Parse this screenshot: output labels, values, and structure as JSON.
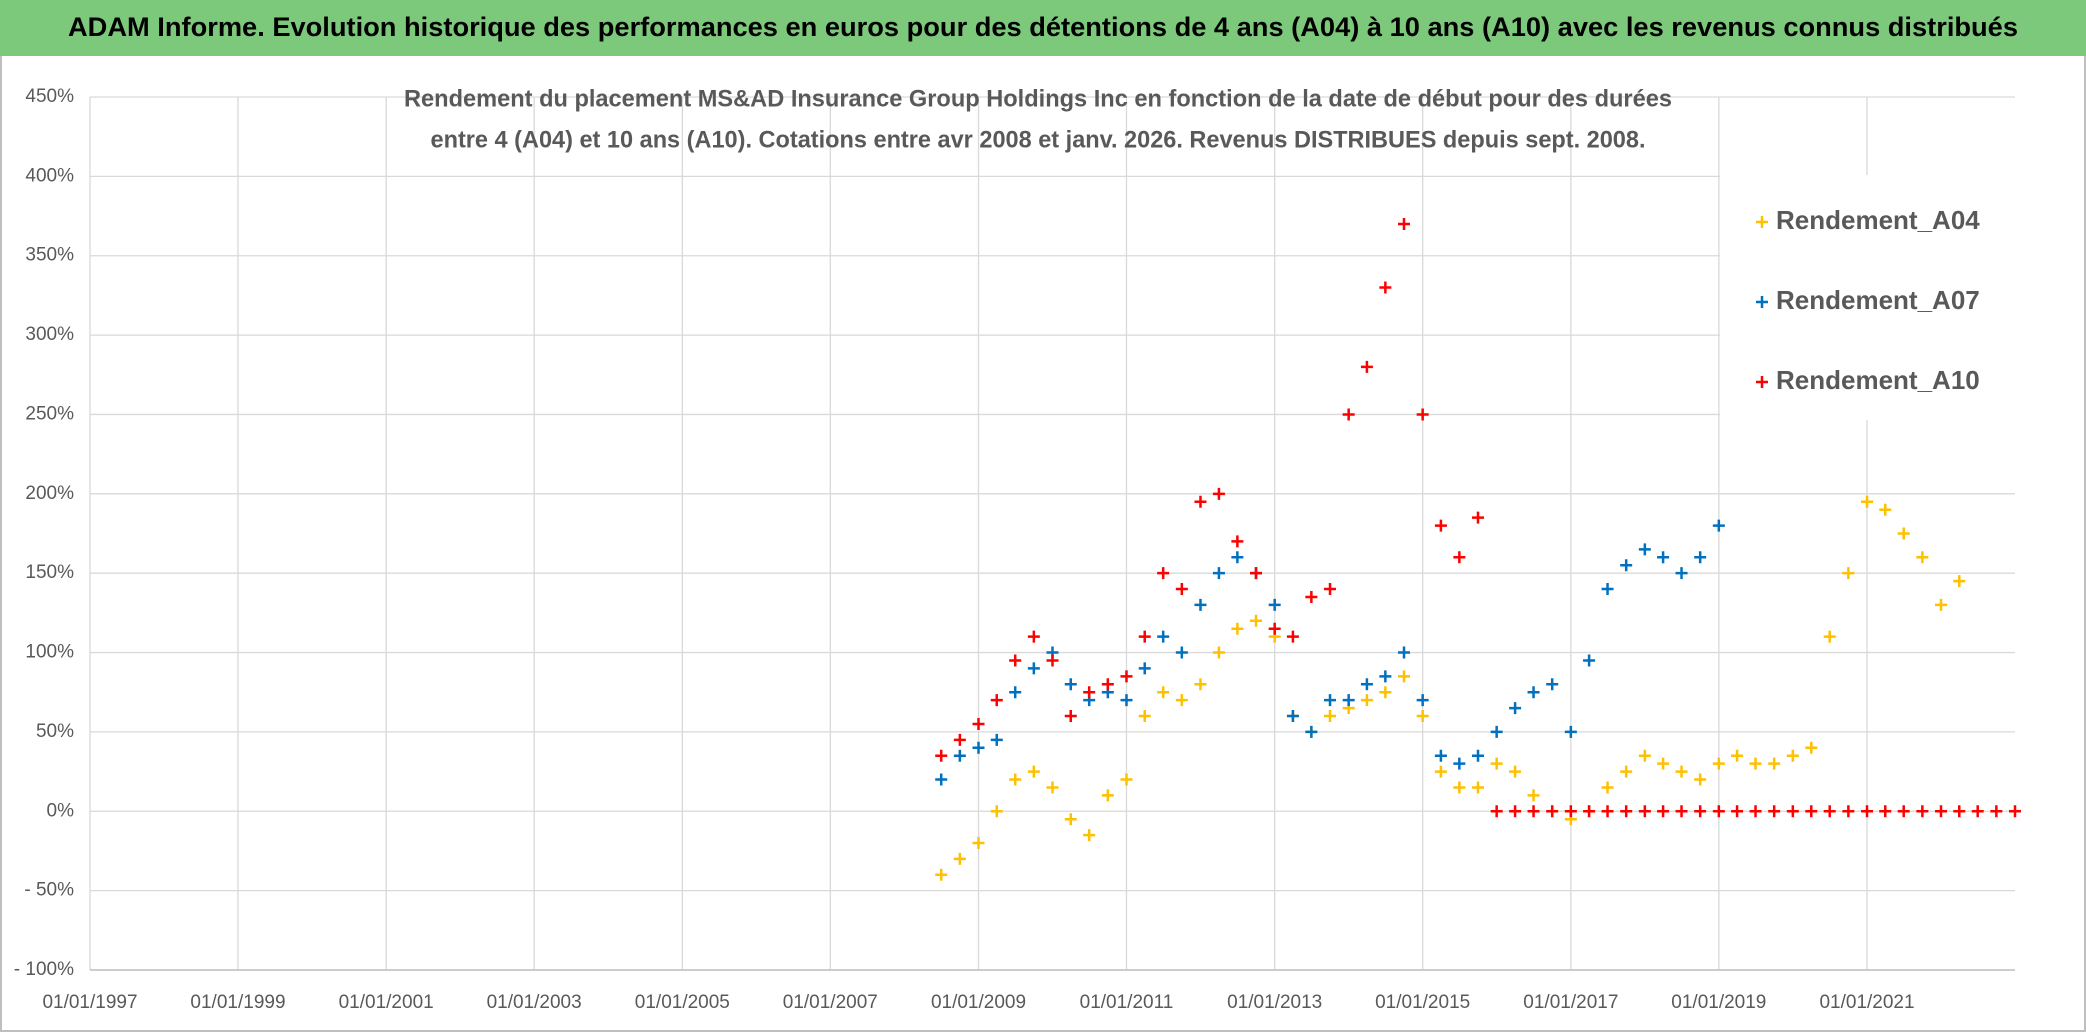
{
  "header": {
    "title": "ADAM Informe. Evolution historique des performances en euros pour des détentions de 4 ans (A04) à 10 ans (A10) avec les revenus connus distribués"
  },
  "chart_data": {
    "type": "scatter",
    "title": [
      "Rendement du placement MS&AD Insurance Group Holdings Inc en fonction de la date de début pour des durées",
      "entre 4 (A04) et 10 ans (A10). Cotations entre avr 2008 et janv. 2026. Revenus DISTRIBUES depuis sept. 2008."
    ],
    "xlim": [
      "1997-01-01",
      "2023-01-01"
    ],
    "xticks": [
      {
        "value": "1997-01-01",
        "label": "01/01/1997"
      },
      {
        "value": "1999-01-01",
        "label": "01/01/1999"
      },
      {
        "value": "2001-01-01",
        "label": "01/01/2001"
      },
      {
        "value": "2003-01-01",
        "label": "01/01/2003"
      },
      {
        "value": "2005-01-01",
        "label": "01/01/2005"
      },
      {
        "value": "2007-01-01",
        "label": "01/01/2007"
      },
      {
        "value": "2009-01-01",
        "label": "01/01/2009"
      },
      {
        "value": "2011-01-01",
        "label": "01/01/2011"
      },
      {
        "value": "2013-01-01",
        "label": "01/01/2013"
      },
      {
        "value": "2015-01-01",
        "label": "01/01/2015"
      },
      {
        "value": "2017-01-01",
        "label": "01/01/2017"
      },
      {
        "value": "2019-01-01",
        "label": "01/01/2019"
      },
      {
        "value": "2021-01-01",
        "label": "01/01/2021"
      }
    ],
    "ylim": [
      -100,
      450
    ],
    "yticks": [
      {
        "value": -100,
        "label": "- 100%"
      },
      {
        "value": -50,
        "label": "- 50%"
      },
      {
        "value": 0,
        "label": "0%"
      },
      {
        "value": 50,
        "label": "50%"
      },
      {
        "value": 100,
        "label": "100%"
      },
      {
        "value": 150,
        "label": "150%"
      },
      {
        "value": 200,
        "label": "200%"
      },
      {
        "value": 250,
        "label": "250%"
      },
      {
        "value": 300,
        "label": "300%"
      },
      {
        "value": 350,
        "label": "350%"
      },
      {
        "value": 400,
        "label": "400%"
      },
      {
        "value": 450,
        "label": "450%"
      }
    ],
    "grid": true,
    "legend": "upper right",
    "series": [
      {
        "name": "Rendement_A04",
        "color": "#ffc000",
        "x": [
          "2008-07-01",
          "2008-10-01",
          "2009-01-01",
          "2009-04-01",
          "2009-07-01",
          "2009-10-01",
          "2010-01-01",
          "2010-04-01",
          "2010-07-01",
          "2010-10-01",
          "2011-01-01",
          "2011-04-01",
          "2011-07-01",
          "2011-10-01",
          "2012-01-01",
          "2012-04-01",
          "2012-07-01",
          "2012-10-01",
          "2013-01-01",
          "2013-04-01",
          "2013-07-01",
          "2013-10-01",
          "2014-01-01",
          "2014-04-01",
          "2014-07-01",
          "2014-10-01",
          "2015-01-01",
          "2015-04-01",
          "2015-07-01",
          "2015-10-01",
          "2016-01-01",
          "2016-04-01",
          "2016-07-01",
          "2016-10-01",
          "2017-01-01",
          "2017-04-01",
          "2017-07-01",
          "2017-10-01",
          "2018-01-01",
          "2018-04-01",
          "2018-07-01",
          "2018-10-01",
          "2019-01-01",
          "2019-04-01",
          "2019-07-01",
          "2019-10-01",
          "2020-01-01",
          "2020-04-01",
          "2020-07-01",
          "2020-10-01",
          "2021-01-01",
          "2021-04-01",
          "2021-07-01",
          "2021-10-01",
          "2022-01-01",
          "2022-04-01"
        ],
        "values": [
          -40,
          -30,
          -20,
          0,
          20,
          25,
          15,
          -5,
          -15,
          10,
          20,
          60,
          75,
          70,
          80,
          100,
          115,
          120,
          110,
          60,
          50,
          60,
          65,
          70,
          75,
          85,
          60,
          25,
          15,
          15,
          30,
          25,
          10,
          0,
          -5,
          0,
          15,
          25,
          35,
          30,
          25,
          20,
          30,
          35,
          30,
          30,
          35,
          40,
          110,
          150,
          195,
          190,
          175,
          160,
          130,
          145
        ]
      },
      {
        "name": "Rendement_A07",
        "color": "#0070c0",
        "x": [
          "2008-07-01",
          "2008-10-01",
          "2009-01-01",
          "2009-04-01",
          "2009-07-01",
          "2009-10-01",
          "2010-01-01",
          "2010-04-01",
          "2010-07-01",
          "2010-10-01",
          "2011-01-01",
          "2011-04-01",
          "2011-07-01",
          "2011-10-01",
          "2012-01-01",
          "2012-04-01",
          "2012-07-01",
          "2012-10-01",
          "2013-01-01",
          "2013-04-01",
          "2013-07-01",
          "2013-10-01",
          "2014-01-01",
          "2014-04-01",
          "2014-07-01",
          "2014-10-01",
          "2015-01-01",
          "2015-04-01",
          "2015-07-01",
          "2015-10-01",
          "2016-01-01",
          "2016-04-01",
          "2016-07-01",
          "2016-10-01",
          "2017-01-01",
          "2017-04-01",
          "2017-07-01",
          "2017-10-01",
          "2018-01-01",
          "2018-04-01",
          "2018-07-01",
          "2018-10-01",
          "2019-01-01"
        ],
        "values": [
          20,
          35,
          40,
          45,
          75,
          90,
          100,
          80,
          70,
          75,
          70,
          90,
          110,
          100,
          130,
          150,
          160,
          150,
          130,
          60,
          50,
          70,
          70,
          80,
          85,
          100,
          70,
          35,
          30,
          35,
          50,
          65,
          75,
          80,
          50,
          95,
          140,
          155,
          165,
          160,
          150,
          160,
          180
        ]
      },
      {
        "name": "Rendement_A10",
        "color": "#ff0000",
        "x": [
          "2008-07-01",
          "2008-10-01",
          "2009-01-01",
          "2009-04-01",
          "2009-07-01",
          "2009-10-01",
          "2010-01-01",
          "2010-04-01",
          "2010-07-01",
          "2010-10-01",
          "2011-01-01",
          "2011-04-01",
          "2011-07-01",
          "2011-10-01",
          "2012-01-01",
          "2012-04-01",
          "2012-07-01",
          "2012-10-01",
          "2013-01-01",
          "2013-04-01",
          "2013-07-01",
          "2013-10-01",
          "2014-01-01",
          "2014-04-01",
          "2014-07-01",
          "2014-10-01",
          "2015-01-01",
          "2015-04-01",
          "2015-07-01",
          "2015-10-01",
          "2016-01-01",
          "2016-04-01",
          "2016-07-01",
          "2016-10-01",
          "2017-01-01",
          "2017-04-01",
          "2017-07-01",
          "2017-10-01",
          "2018-01-01",
          "2018-04-01",
          "2018-07-01",
          "2018-10-01",
          "2019-01-01",
          "2019-04-01",
          "2019-07-01",
          "2019-10-01",
          "2020-01-01",
          "2020-04-01",
          "2020-07-01",
          "2020-10-01",
          "2021-01-01",
          "2021-04-01",
          "2021-07-01",
          "2021-10-01",
          "2022-01-01",
          "2022-04-01",
          "2022-07-01",
          "2022-10-01",
          "2023-01-01"
        ],
        "values": [
          35,
          45,
          55,
          70,
          95,
          110,
          95,
          60,
          75,
          80,
          85,
          110,
          150,
          140,
          195,
          200,
          170,
          150,
          115,
          110,
          135,
          140,
          250,
          280,
          330,
          370,
          250,
          180,
          160,
          185,
          0,
          0,
          0,
          0,
          0,
          0,
          0,
          0,
          0,
          0,
          0,
          0,
          0,
          0,
          0,
          0,
          0,
          0,
          0,
          0,
          0,
          0,
          0,
          0,
          0,
          0,
          0,
          0,
          0
        ]
      }
    ]
  }
}
